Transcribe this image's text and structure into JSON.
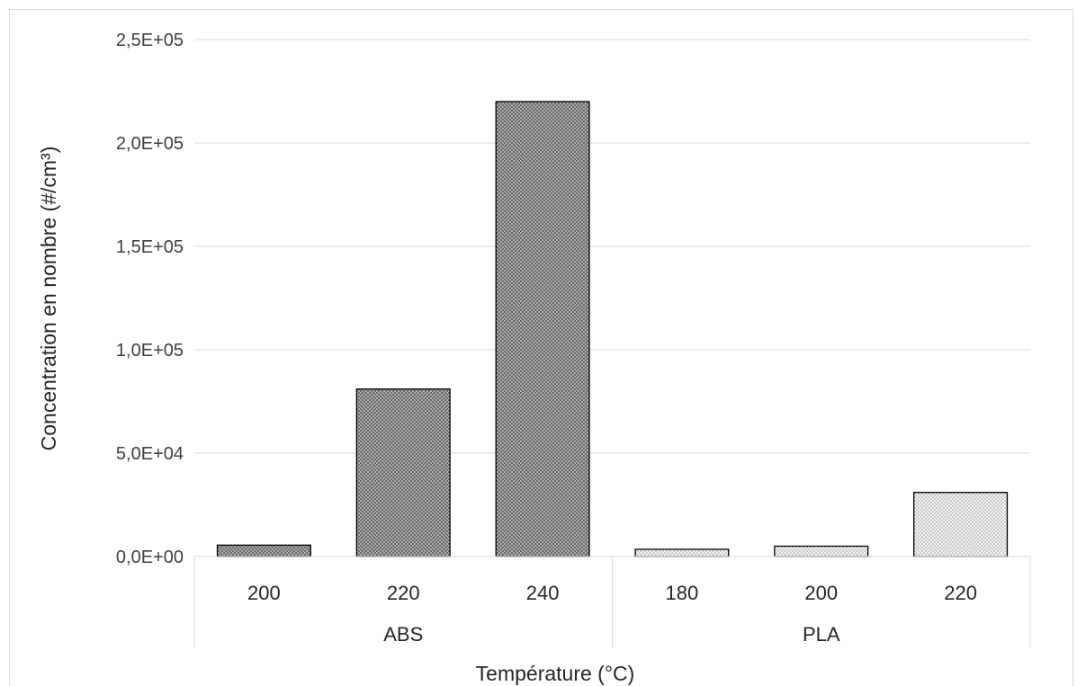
{
  "chart_data": {
    "type": "bar",
    "xlabel": "Température (°C)",
    "ylabel": "Concentration en nombre (#/cm³)",
    "ylim": [
      0,
      250000
    ],
    "yticks": [
      "0,0E+00",
      "5,0E+04",
      "1,0E+05",
      "1,5E+05",
      "2,0E+05",
      "2,5E+05"
    ],
    "grid": true,
    "groups": [
      {
        "name": "ABS",
        "fill": "#8c8c8c",
        "categories": [
          "200",
          "220",
          "240"
        ],
        "values": [
          5500,
          81000,
          220000
        ]
      },
      {
        "name": "PLA",
        "fill": "#d9d9d9",
        "categories": [
          "180",
          "200",
          "220"
        ],
        "values": [
          3500,
          5000,
          31000
        ]
      }
    ]
  }
}
